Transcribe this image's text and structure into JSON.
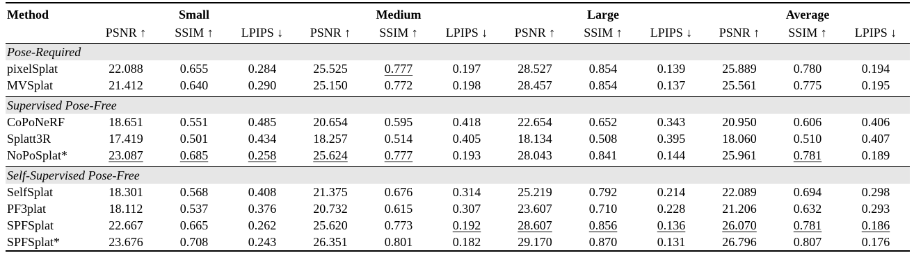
{
  "header": {
    "method": "Method",
    "groups": [
      "Small",
      "Medium",
      "Large",
      "Average"
    ],
    "metrics": [
      "PSNR ↑",
      "SSIM ↑",
      "LPIPS ↓",
      "PSNR ↑",
      "SSIM ↑",
      "LPIPS ↓",
      "PSNR ↑",
      "SSIM ↑",
      "LPIPS ↓",
      "PSNR ↑",
      "SSIM ↑",
      "LPIPS ↓"
    ]
  },
  "sections": [
    {
      "title": "Pose-Required",
      "rows": [
        {
          "method": "pixelSplat",
          "values": [
            "22.088",
            "0.655",
            "0.284",
            "25.525",
            "0.777",
            "0.197",
            "28.527",
            "0.854",
            "0.139",
            "25.889",
            "0.780",
            "0.194"
          ],
          "underline": [
            4
          ]
        },
        {
          "method": "MVSplat",
          "values": [
            "21.412",
            "0.640",
            "0.290",
            "25.150",
            "0.772",
            "0.198",
            "28.457",
            "0.854",
            "0.137",
            "25.561",
            "0.775",
            "0.195"
          ],
          "underline": []
        }
      ]
    },
    {
      "title": "Supervised Pose-Free",
      "rows": [
        {
          "method": "CoPoNeRF",
          "values": [
            "18.651",
            "0.551",
            "0.485",
            "20.654",
            "0.595",
            "0.418",
            "22.654",
            "0.652",
            "0.343",
            "20.950",
            "0.606",
            "0.406"
          ],
          "underline": []
        },
        {
          "method": "Splatt3R",
          "values": [
            "17.419",
            "0.501",
            "0.434",
            "18.257",
            "0.514",
            "0.405",
            "18.134",
            "0.508",
            "0.395",
            "18.060",
            "0.510",
            "0.407"
          ],
          "underline": []
        },
        {
          "method": "NoPoSplat*",
          "values": [
            "23.087",
            "0.685",
            "0.258",
            "25.624",
            "0.777",
            "0.193",
            "28.043",
            "0.841",
            "0.144",
            "25.961",
            "0.781",
            "0.189"
          ],
          "underline": [
            0,
            1,
            2,
            3,
            4,
            10
          ]
        }
      ]
    },
    {
      "title": "Self-Supervised Pose-Free",
      "rows": [
        {
          "method": "SelfSplat",
          "values": [
            "18.301",
            "0.568",
            "0.408",
            "21.375",
            "0.676",
            "0.314",
            "25.219",
            "0.792",
            "0.214",
            "22.089",
            "0.694",
            "0.298"
          ],
          "underline": []
        },
        {
          "method": "PF3plat",
          "values": [
            "18.112",
            "0.537",
            "0.376",
            "20.732",
            "0.615",
            "0.307",
            "23.607",
            "0.710",
            "0.228",
            "21.206",
            "0.632",
            "0.293"
          ],
          "underline": []
        },
        {
          "method": "SPFSplat",
          "values": [
            "22.667",
            "0.665",
            "0.262",
            "25.620",
            "0.773",
            "0.192",
            "28.607",
            "0.856",
            "0.136",
            "26.070",
            "0.781",
            "0.186"
          ],
          "underline": [
            5,
            6,
            7,
            8,
            9,
            10,
            11
          ],
          "bold_method": true
        },
        {
          "method": "SPFSplat*",
          "values": [
            "23.676",
            "0.708",
            "0.243",
            "26.351",
            "0.801",
            "0.182",
            "29.170",
            "0.870",
            "0.131",
            "26.796",
            "0.807",
            "0.176"
          ],
          "underline": [],
          "bold_all": true
        }
      ]
    }
  ]
}
